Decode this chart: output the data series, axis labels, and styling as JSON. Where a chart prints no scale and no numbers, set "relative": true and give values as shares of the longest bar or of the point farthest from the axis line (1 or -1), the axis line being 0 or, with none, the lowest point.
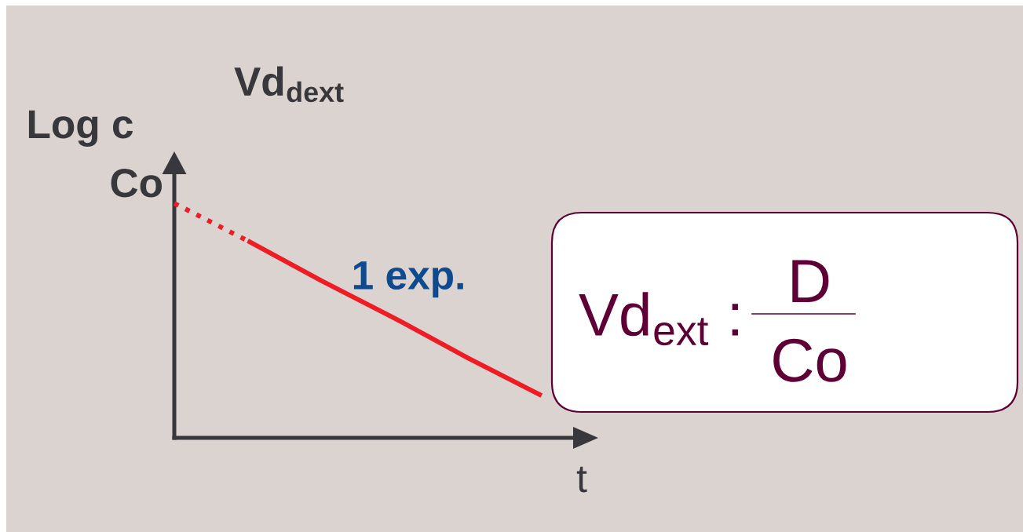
{
  "chart_data": {
    "type": "line",
    "relative": true,
    "title": "Vd$_{dext}$",
    "xlabel": "t",
    "ylabel": "Log c",
    "categories": [
      null,
      null,
      null,
      null,
      null,
      null
    ],
    "series": [
      {
        "color": "#ee1c24",
        "line_style": "dotted",
        "values": [
          1,
          0.84,
          null,
          null,
          null,
          null
        ]
      },
      {
        "name": "1 exp.",
        "color": "#ee1c24",
        "line_style": "solid",
        "values": [
          null,
          0.84,
          0.67,
          0.51,
          0.34,
          0.18
        ]
      }
    ],
    "annotations": [
      "Co",
      "Vd$_{ext}$ :",
      "D",
      "Co"
    ]
  }
}
